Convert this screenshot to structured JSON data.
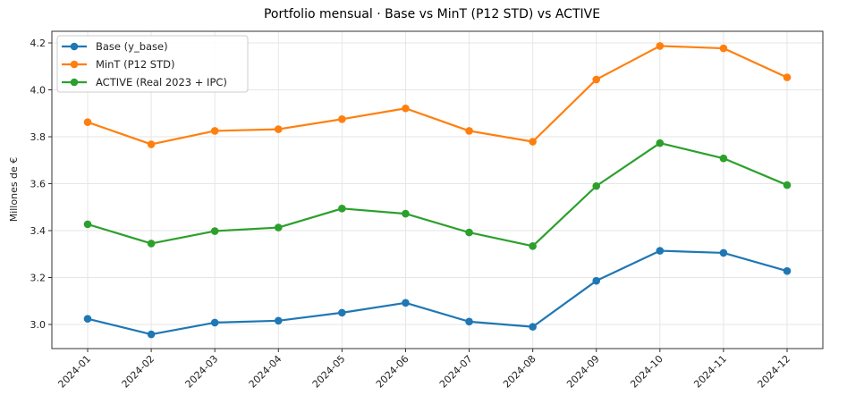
{
  "chart_data": {
    "type": "line",
    "title": "Portfolio mensual · Base vs MinT (P12 STD) vs ACTIVE",
    "xlabel": "",
    "ylabel": "Millones de €",
    "categories": [
      "2024-01",
      "2024-02",
      "2024-03",
      "2024-04",
      "2024-05",
      "2024-06",
      "2024-07",
      "2024-08",
      "2024-09",
      "2024-10",
      "2024-11",
      "2024-12"
    ],
    "ylim": [
      2.9,
      4.25
    ],
    "yticks": [
      "3.0",
      "3.2",
      "3.4",
      "3.6",
      "3.8",
      "4.0",
      "4.2"
    ],
    "ytick_values": [
      3.0,
      3.2,
      3.4,
      3.6,
      3.8,
      4.0,
      4.2
    ],
    "grid": true,
    "legend_position": "top-left",
    "series": [
      {
        "name": "Base (y_base)",
        "color": "#1f77b4",
        "marker": "circle",
        "values": [
          3.024,
          2.958,
          3.008,
          3.016,
          3.05,
          3.092,
          3.012,
          2.99,
          3.186,
          3.314,
          3.305,
          3.228
        ]
      },
      {
        "name": "MinT (P12 STD)",
        "color": "#ff7f0e",
        "marker": "circle",
        "values": [
          3.862,
          3.768,
          3.825,
          3.832,
          3.875,
          3.921,
          3.825,
          3.779,
          4.044,
          4.187,
          4.177,
          4.053
        ]
      },
      {
        "name": "ACTIVE (Real 2023 + IPC)",
        "color": "#2ca02c",
        "marker": "circle",
        "values": [
          3.427,
          3.345,
          3.398,
          3.413,
          3.494,
          3.472,
          3.392,
          3.334,
          3.59,
          3.773,
          3.708,
          3.594
        ]
      }
    ]
  }
}
